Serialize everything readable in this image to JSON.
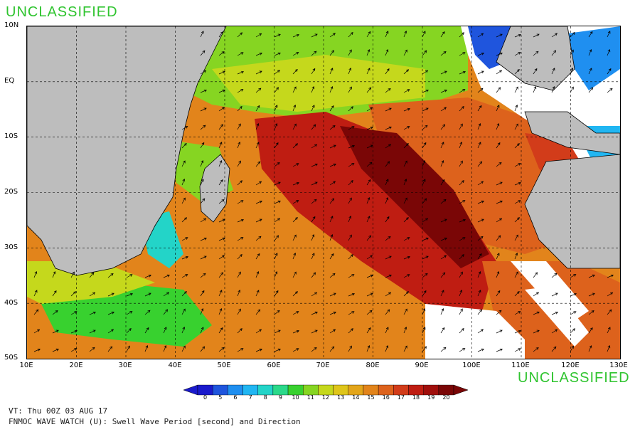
{
  "classification": {
    "top": "UNCLASSIFIED",
    "bottom": "UNCLASSIFIED"
  },
  "map": {
    "lat_labels": [
      "10N",
      "EQ",
      "10S",
      "20S",
      "30S",
      "40S",
      "50S"
    ],
    "lon_labels": [
      "10E",
      "20E",
      "30E",
      "40E",
      "50E",
      "60E",
      "70E",
      "80E",
      "90E",
      "100E",
      "110E",
      "120E",
      "130E"
    ],
    "lon_range": [
      10,
      130
    ],
    "lat_range": [
      -50,
      10
    ]
  },
  "legend": {
    "values": [
      "0",
      "5",
      "6",
      "7",
      "8",
      "9",
      "10",
      "11",
      "12",
      "13",
      "14",
      "15",
      "16",
      "17",
      "18",
      "19",
      "20"
    ],
    "colors": [
      "#1a1acc",
      "#1f55dd",
      "#1f8ff0",
      "#21b6f2",
      "#23d4c8",
      "#2bd98a",
      "#38d12f",
      "#86d522",
      "#c5d81c",
      "#dfc51a",
      "#e3a51a",
      "#e2841b",
      "#dd621c",
      "#d23c1a",
      "#bf1d12",
      "#a00f0c",
      "#7a0606"
    ]
  },
  "info": {
    "vt": "VT: Thu 00Z 03 AUG 17",
    "title": "FNMOC WAVE WATCH (U): Swell Wave Period [second] and Direction"
  }
}
